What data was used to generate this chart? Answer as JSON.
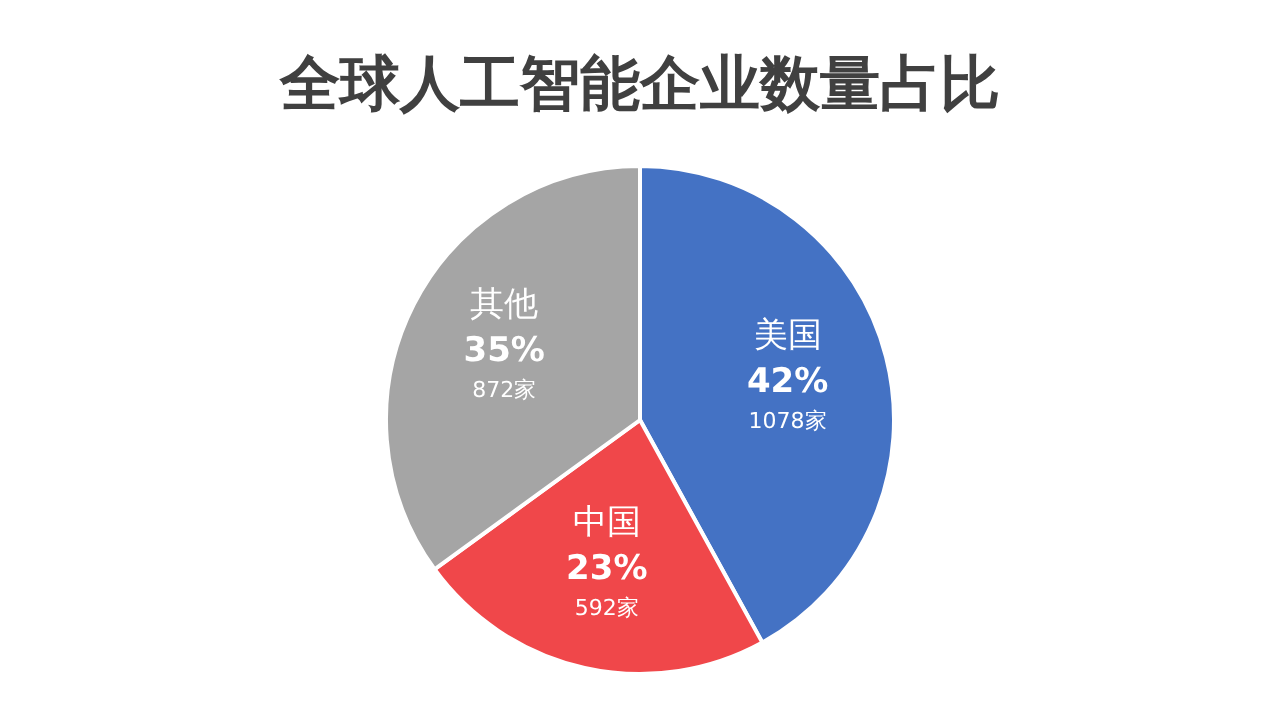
{
  "chart_data": {
    "type": "pie",
    "title": "全球人工智能企业数量占比",
    "categories": [
      "美国",
      "中国",
      "其他"
    ],
    "values": [
      42,
      23,
      35
    ],
    "colors": [
      "#4472c4",
      "#f0474a",
      "#a5a5a5"
    ],
    "value_labels": [
      "42%\n1078家",
      "23%\n592家",
      "35%\n872家"
    ],
    "legend": false
  }
}
